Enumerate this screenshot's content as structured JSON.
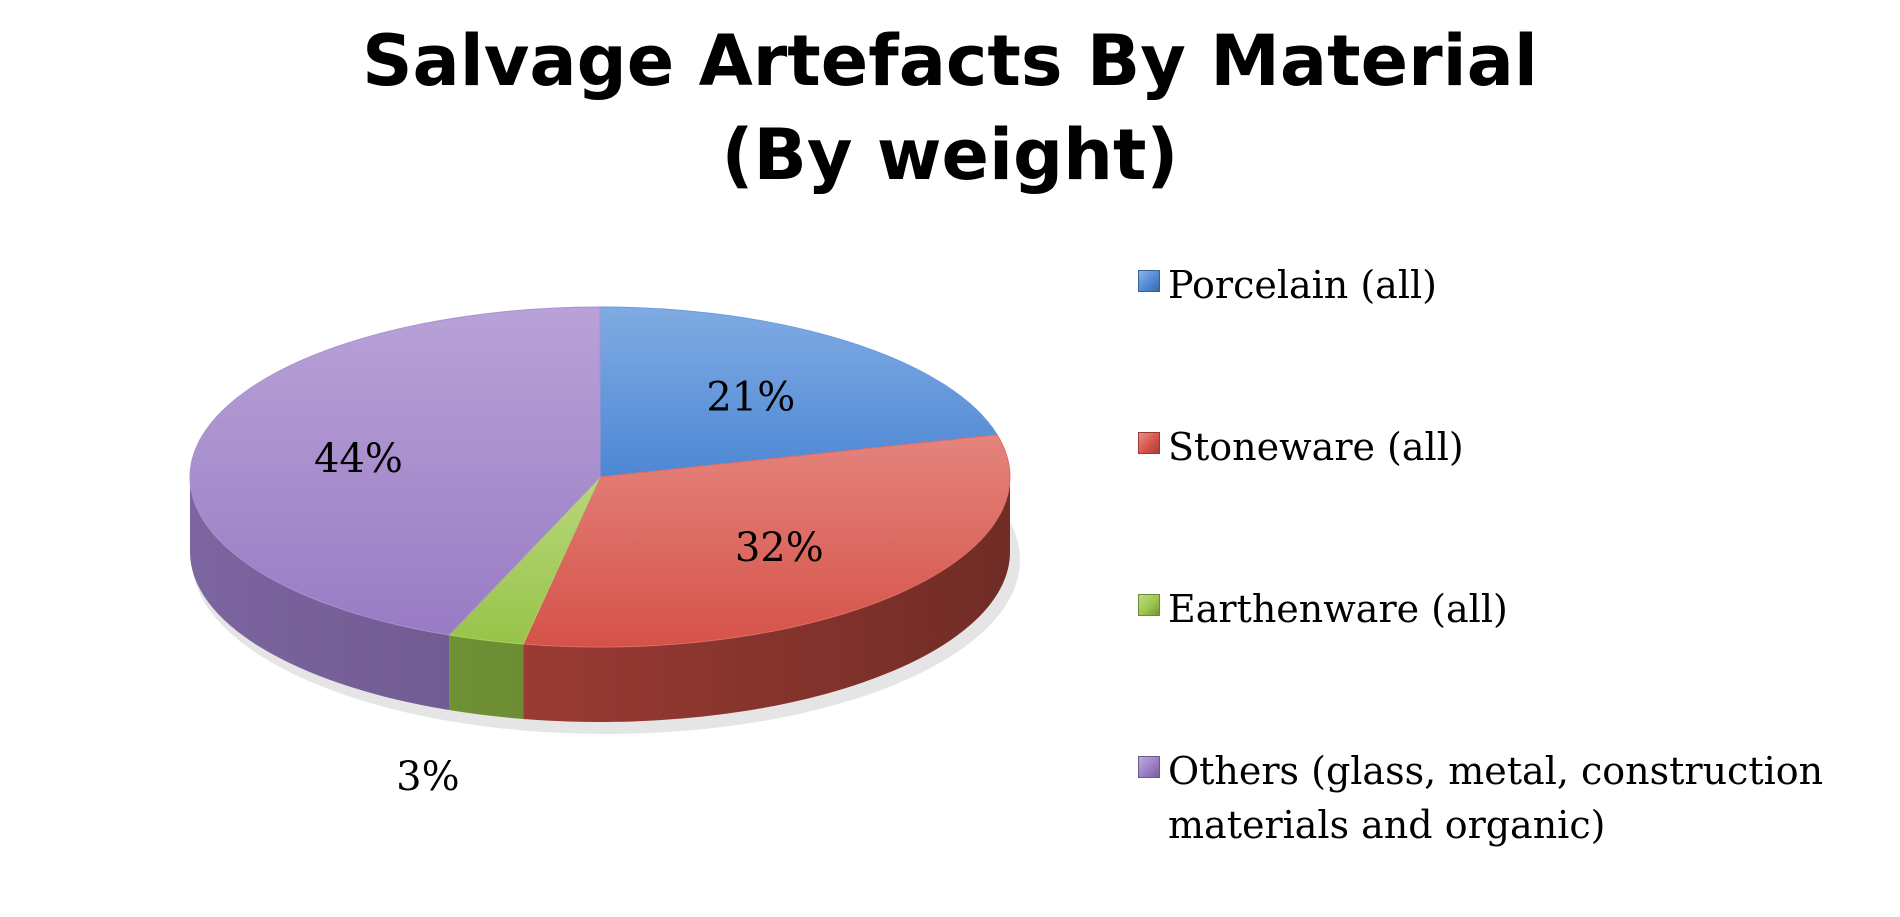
{
  "chart_data": {
    "type": "pie",
    "title": "Salvage Artefacts By Material",
    "subtitle": "(By weight)",
    "legend_position": "right",
    "slices": [
      {
        "name": "Porcelain (all)",
        "value": 21,
        "label": "21%",
        "color": "#4f8ad8"
      },
      {
        "name": "Stoneware (all)",
        "value": 32,
        "label": "32%",
        "color": "#d9544a"
      },
      {
        "name": "Earthenware (all)",
        "value": 3,
        "label": "3%",
        "color": "#9bc84a"
      },
      {
        "name": "Others (glass, metal, construction materials and organic)",
        "value": 44,
        "label": "44%",
        "color": "#9c7ec8"
      }
    ]
  },
  "legend": {
    "items": [
      {
        "label": "Porcelain (all)",
        "color": "#4f8ad8"
      },
      {
        "label": "Stoneware (all)",
        "color": "#d9544a"
      },
      {
        "label": "Earthenware (all)",
        "color": "#9bc84a"
      },
      {
        "label": "Others (glass, metal, construction materials and organic)",
        "color": "#9c7ec8"
      }
    ]
  }
}
